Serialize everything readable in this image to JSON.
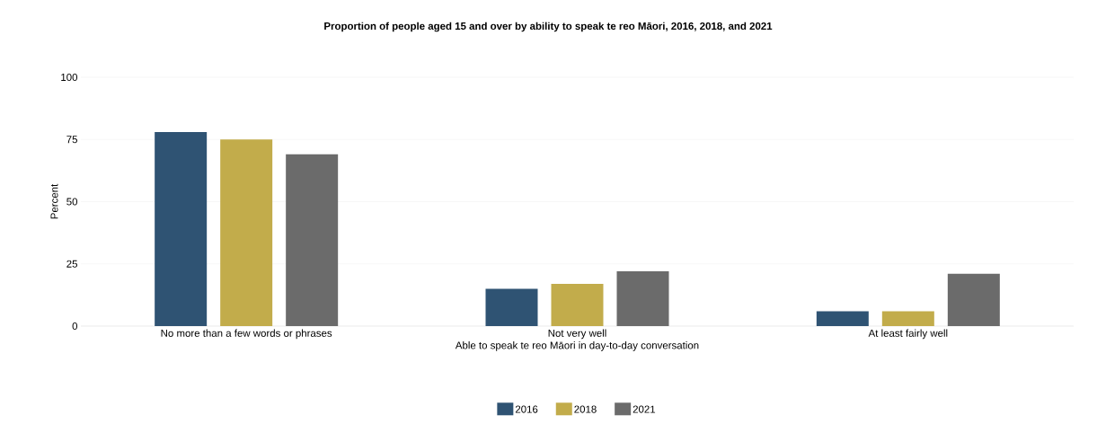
{
  "chart_data": {
    "type": "bar",
    "title": "Proportion of people aged 15 and over by ability to speak te reo Māori, 2016, 2018, and 2021",
    "xlabel": "Able to speak te reo Māori in day-to-day conversation",
    "ylabel": "Percent",
    "categories": [
      "No more than a few words or phrases",
      "Not very well",
      "At least fairly well"
    ],
    "series": [
      {
        "name": "2016",
        "color": "#2f5373",
        "values": [
          78,
          15,
          6
        ]
      },
      {
        "name": "2018",
        "color": "#c2ac4b",
        "values": [
          75,
          17,
          6
        ]
      },
      {
        "name": "2021",
        "color": "#6b6b6b",
        "values": [
          69,
          22,
          21
        ]
      }
    ],
    "ylim": [
      0,
      100
    ],
    "yticks": [
      0,
      25,
      50,
      75,
      100
    ],
    "grid": "y",
    "legend": "bottom"
  }
}
